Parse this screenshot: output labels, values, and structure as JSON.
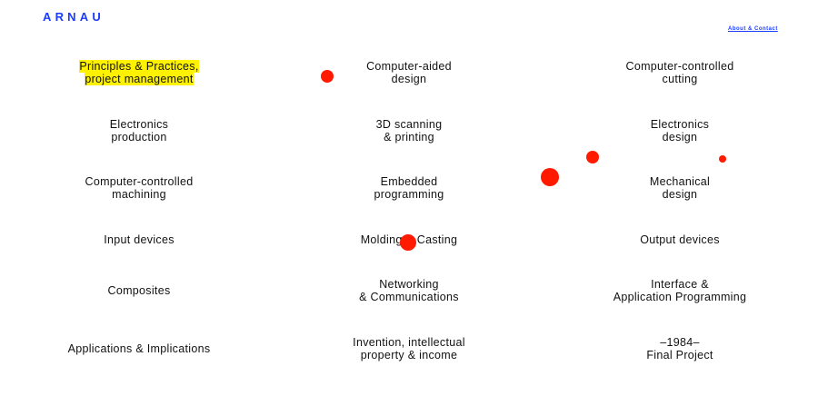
{
  "header": {
    "logo": "ARNAU",
    "about_link": "About & Contact"
  },
  "accent_color": "#1a3cff",
  "highlight_color": "#fff200",
  "dot_color": "#ff1a00",
  "items": [
    {
      "label": "Principles & Practices,\nproject management",
      "highlighted": true
    },
    {
      "label": "Computer-aided\ndesign"
    },
    {
      "label": "Computer-controlled\ncutting"
    },
    {
      "label": "Electronics\nproduction"
    },
    {
      "label": "3D scanning\n& printing"
    },
    {
      "label": "Electronics\ndesign"
    },
    {
      "label": "Computer-controlled\nmachining"
    },
    {
      "label": "Embedded\nprogramming"
    },
    {
      "label": "Mechanical\ndesign"
    },
    {
      "label": "Input devices"
    },
    {
      "label": "Molding & Casting"
    },
    {
      "label": "Output devices"
    },
    {
      "label": "Composites"
    },
    {
      "label": "Networking\n& Communications"
    },
    {
      "label": "Interface &\nApplication Programming"
    },
    {
      "label": "Applications & Implications"
    },
    {
      "label": "Invention, intellectual\nproperty & income"
    },
    {
      "label": "–1984–\nFinal Project"
    }
  ]
}
